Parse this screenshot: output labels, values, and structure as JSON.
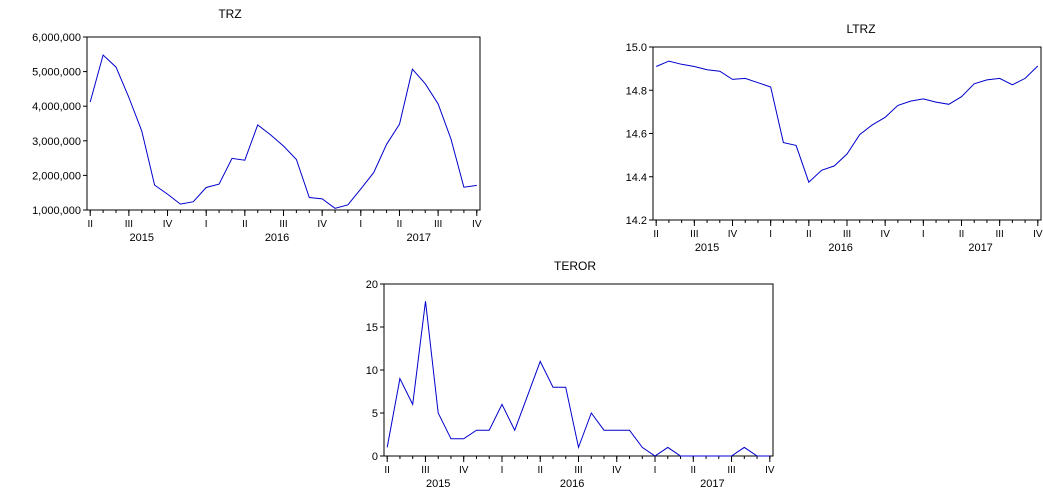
{
  "colors": {
    "series": "#0000cc",
    "axis": "#000000",
    "background": "#ffffff"
  },
  "chart_data": [
    {
      "type": "line",
      "title": "TRZ",
      "grid": false,
      "ylim": [
        1000000,
        6000000
      ],
      "yticks": [
        1000000,
        2000000,
        3000000,
        4000000,
        5000000,
        6000000
      ],
      "ytick_labels": [
        "1,000,000",
        "2,000,000",
        "3,000,000",
        "4,000,000",
        "5,000,000",
        "6,000,000"
      ],
      "quarter_ticks": [
        "II",
        "III",
        "IV",
        "I",
        "II",
        "III",
        "IV",
        "I",
        "II",
        "III",
        "IV"
      ],
      "year_labels": [
        "2015",
        "2016",
        "2017"
      ],
      "x_start": "2015-04",
      "series": [
        {
          "name": "",
          "values": [
            4120000,
            5480000,
            5130000,
            4250000,
            3280000,
            1720000,
            1460000,
            1170000,
            1240000,
            1650000,
            1750000,
            2490000,
            2440000,
            3460000,
            3170000,
            2850000,
            2460000,
            1360000,
            1320000,
            1050000,
            1150000,
            1610000,
            2080000,
            2900000,
            3480000,
            5070000,
            4650000,
            4070000,
            3050000,
            1660000,
            1710000
          ]
        }
      ]
    },
    {
      "type": "line",
      "title": "LTRZ",
      "grid": false,
      "ylim": [
        14.2,
        15.0
      ],
      "yticks": [
        14.2,
        14.4,
        14.6,
        14.8,
        15.0
      ],
      "ytick_labels": [
        "14.2",
        "14.4",
        "14.6",
        "14.8",
        "15.0"
      ],
      "quarter_ticks": [
        "II",
        "III",
        "IV",
        "I",
        "II",
        "III",
        "IV",
        "I",
        "II",
        "III",
        "IV"
      ],
      "year_labels": [
        "2015",
        "2016",
        "2017"
      ],
      "x_start": "2015-04",
      "series": [
        {
          "name": "",
          "values": [
            14.91,
            14.935,
            14.92,
            14.91,
            14.895,
            14.888,
            14.85,
            14.855,
            14.835,
            14.815,
            14.558,
            14.545,
            14.375,
            14.43,
            14.45,
            14.505,
            14.595,
            14.64,
            14.675,
            14.73,
            14.75,
            14.76,
            14.745,
            14.735,
            14.77,
            14.83,
            14.848,
            14.855,
            14.825,
            14.855,
            14.912
          ]
        }
      ]
    },
    {
      "type": "line",
      "title": "TEROR",
      "grid": false,
      "ylim": [
        0,
        20
      ],
      "yticks": [
        0,
        5,
        10,
        15,
        20
      ],
      "ytick_labels": [
        "0",
        "5",
        "10",
        "15",
        "20"
      ],
      "quarter_ticks": [
        "II",
        "III",
        "IV",
        "I",
        "II",
        "III",
        "IV",
        "I",
        "II",
        "III",
        "IV"
      ],
      "year_labels": [
        "2015",
        "2016",
        "2017"
      ],
      "x_start": "2015-04",
      "series": [
        {
          "name": "",
          "values": [
            1,
            9,
            6,
            18,
            5,
            2,
            2,
            3,
            3,
            6,
            3,
            7,
            11,
            8,
            8,
            1,
            5,
            3,
            3,
            3,
            1,
            0,
            1,
            0,
            0,
            0,
            0,
            0,
            1,
            0,
            0
          ]
        }
      ]
    }
  ]
}
